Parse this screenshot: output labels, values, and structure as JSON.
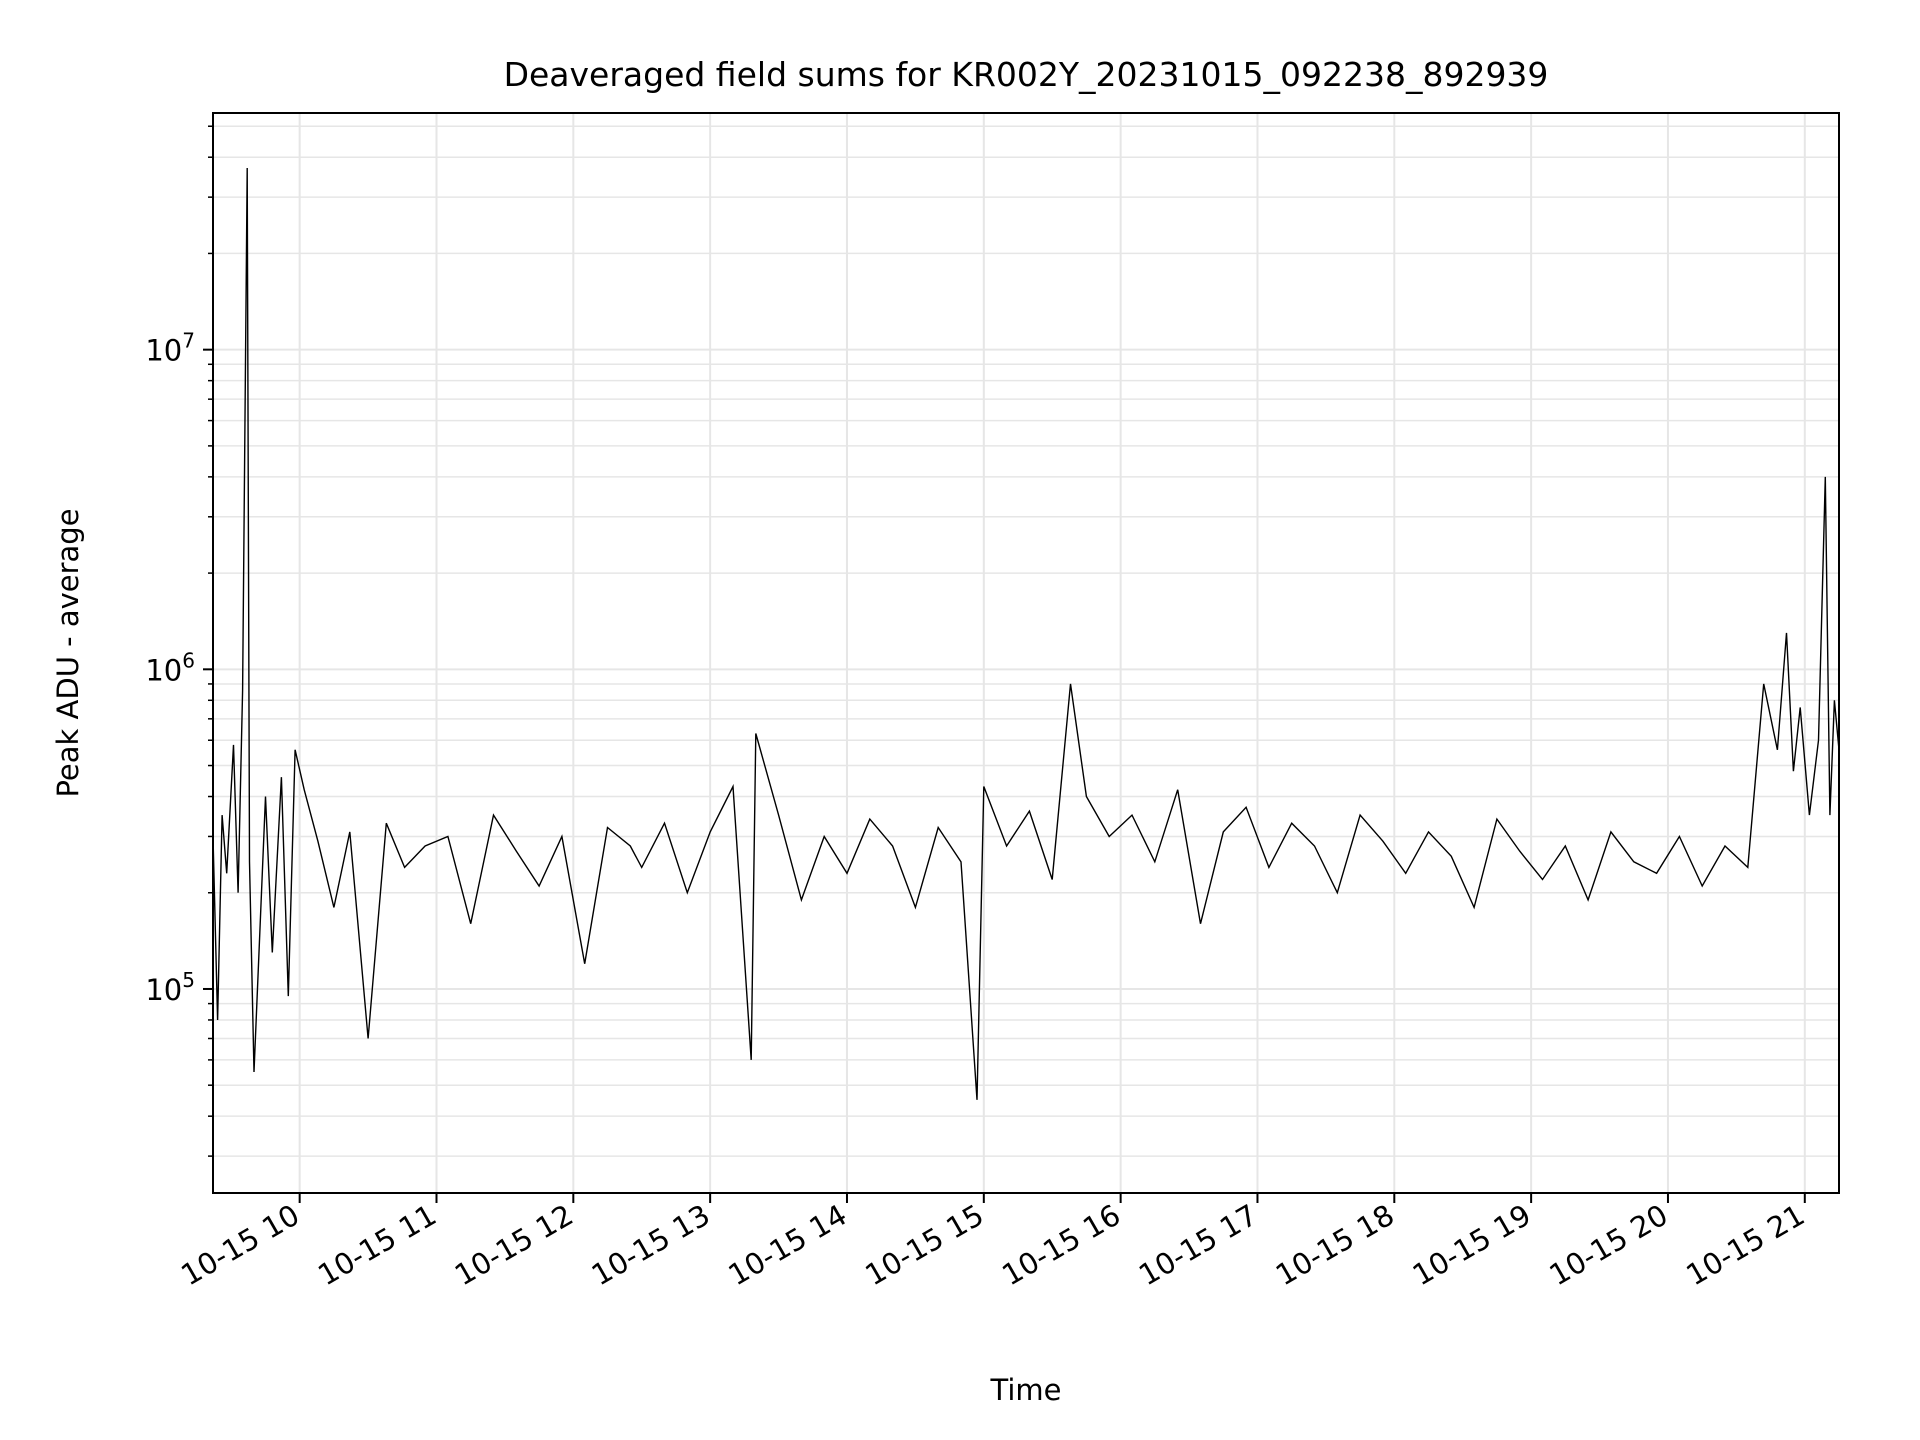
{
  "chart_data": {
    "type": "line",
    "title": "Deaveraged field sums for KR002Y_20231015_092238_892939",
    "xlabel": "Time",
    "ylabel": "Peak ADU - average",
    "yscale": "log",
    "xlim": [
      "2023-10-15 09:22",
      "2023-10-15 21:15"
    ],
    "ylim": [
      23000,
      55000000
    ],
    "grid": "major and minor",
    "line_color": "#000000",
    "grid_color": "#e6e6e6",
    "x_ticks": [
      {
        "t": "2023-10-15 10:00",
        "label": "10-15 10"
      },
      {
        "t": "2023-10-15 11:00",
        "label": "10-15 11"
      },
      {
        "t": "2023-10-15 12:00",
        "label": "10-15 12"
      },
      {
        "t": "2023-10-15 13:00",
        "label": "10-15 13"
      },
      {
        "t": "2023-10-15 14:00",
        "label": "10-15 14"
      },
      {
        "t": "2023-10-15 15:00",
        "label": "10-15 15"
      },
      {
        "t": "2023-10-15 16:00",
        "label": "10-15 16"
      },
      {
        "t": "2023-10-15 17:00",
        "label": "10-15 17"
      },
      {
        "t": "2023-10-15 18:00",
        "label": "10-15 18"
      },
      {
        "t": "2023-10-15 19:00",
        "label": "10-15 19"
      },
      {
        "t": "2023-10-15 20:00",
        "label": "10-15 20"
      },
      {
        "t": "2023-10-15 21:00",
        "label": "10-15 21"
      }
    ],
    "y_ticks": [
      {
        "value": 100000,
        "base": "10",
        "exp": "5"
      },
      {
        "value": 1000000,
        "base": "10",
        "exp": "6"
      },
      {
        "value": 10000000,
        "base": "10",
        "exp": "7"
      }
    ],
    "series": [
      {
        "x": [
          "2023-10-15 09:22",
          "2023-10-15 09:24",
          "2023-10-15 09:26",
          "2023-10-15 09:28",
          "2023-10-15 09:31",
          "2023-10-15 09:33",
          "2023-10-15 09:35",
          "2023-10-15 09:37",
          "2023-10-15 09:38",
          "2023-10-15 09:40",
          "2023-10-15 09:45",
          "2023-10-15 09:48",
          "2023-10-15 09:52",
          "2023-10-15 09:55",
          "2023-10-15 09:58",
          "2023-10-15 10:02",
          "2023-10-15 10:08",
          "2023-10-15 10:15",
          "2023-10-15 10:22",
          "2023-10-15 10:30",
          "2023-10-15 10:38",
          "2023-10-15 10:46",
          "2023-10-15 10:55",
          "2023-10-15 11:05",
          "2023-10-15 11:15",
          "2023-10-15 11:25",
          "2023-10-15 11:35",
          "2023-10-15 11:45",
          "2023-10-15 11:55",
          "2023-10-15 12:05",
          "2023-10-15 12:15",
          "2023-10-15 12:25",
          "2023-10-15 12:30",
          "2023-10-15 12:40",
          "2023-10-15 12:50",
          "2023-10-15 13:00",
          "2023-10-15 13:10",
          "2023-10-15 13:18",
          "2023-10-15 13:20",
          "2023-10-15 13:30",
          "2023-10-15 13:40",
          "2023-10-15 13:50",
          "2023-10-15 14:00",
          "2023-10-15 14:10",
          "2023-10-15 14:20",
          "2023-10-15 14:30",
          "2023-10-15 14:40",
          "2023-10-15 14:50",
          "2023-10-15 14:57",
          "2023-10-15 15:00",
          "2023-10-15 15:10",
          "2023-10-15 15:20",
          "2023-10-15 15:30",
          "2023-10-15 15:38",
          "2023-10-15 15:45",
          "2023-10-15 15:55",
          "2023-10-15 16:05",
          "2023-10-15 16:15",
          "2023-10-15 16:25",
          "2023-10-15 16:35",
          "2023-10-15 16:45",
          "2023-10-15 16:55",
          "2023-10-15 17:05",
          "2023-10-15 17:15",
          "2023-10-15 17:25",
          "2023-10-15 17:35",
          "2023-10-15 17:45",
          "2023-10-15 17:55",
          "2023-10-15 18:05",
          "2023-10-15 18:15",
          "2023-10-15 18:25",
          "2023-10-15 18:35",
          "2023-10-15 18:45",
          "2023-10-15 18:55",
          "2023-10-15 19:05",
          "2023-10-15 19:15",
          "2023-10-15 19:25",
          "2023-10-15 19:35",
          "2023-10-15 19:45",
          "2023-10-15 19:55",
          "2023-10-15 20:05",
          "2023-10-15 20:15",
          "2023-10-15 20:25",
          "2023-10-15 20:35",
          "2023-10-15 20:42",
          "2023-10-15 20:48",
          "2023-10-15 20:52",
          "2023-10-15 20:55",
          "2023-10-15 20:58",
          "2023-10-15 21:02",
          "2023-10-15 21:06",
          "2023-10-15 21:09",
          "2023-10-15 21:11",
          "2023-10-15 21:13",
          "2023-10-15 21:15"
        ],
        "y": [
          300000,
          80000,
          350000,
          230000,
          580000,
          200000,
          860000,
          37000000,
          250000,
          55000,
          400000,
          130000,
          460000,
          95000,
          560000,
          420000,
          290000,
          180000,
          310000,
          70000,
          330000,
          240000,
          280000,
          300000,
          160000,
          350000,
          270000,
          210000,
          300000,
          120000,
          320000,
          280000,
          240000,
          330000,
          200000,
          310000,
          430000,
          60000,
          630000,
          350000,
          190000,
          300000,
          230000,
          340000,
          280000,
          180000,
          320000,
          250000,
          45000,
          430000,
          280000,
          360000,
          220000,
          900000,
          400000,
          300000,
          350000,
          250000,
          420000,
          160000,
          310000,
          370000,
          240000,
          330000,
          280000,
          200000,
          350000,
          290000,
          230000,
          310000,
          260000,
          180000,
          340000,
          270000,
          220000,
          280000,
          190000,
          310000,
          250000,
          230000,
          300000,
          210000,
          280000,
          240000,
          900000,
          560000,
          1300000,
          480000,
          760000,
          350000,
          600000,
          4000000,
          350000,
          800000,
          560000
        ]
      }
    ]
  }
}
